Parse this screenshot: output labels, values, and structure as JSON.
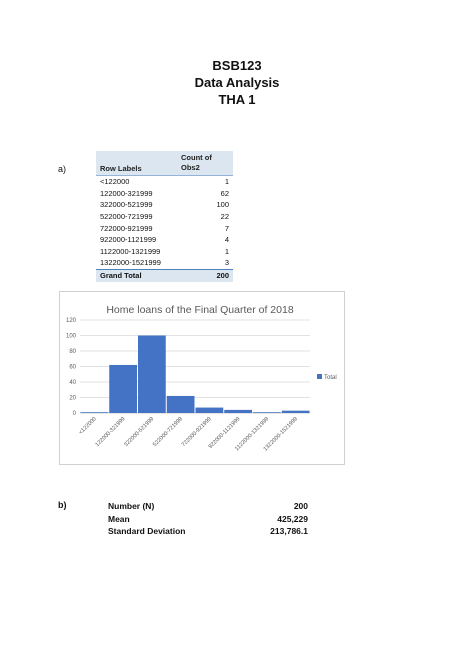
{
  "document": {
    "title_lines": [
      "BSB123",
      "Data Analysis",
      "THA 1"
    ],
    "part_a_label": "a)",
    "part_b_label": "b)"
  },
  "pivot_table": {
    "header_row_labels": "Row Labels",
    "header_count_line1": "Count of",
    "header_count_line2": "Obs2",
    "rows": [
      {
        "label": "<122000",
        "count": "1"
      },
      {
        "label": "122000-321999",
        "count": "62"
      },
      {
        "label": "322000-521999",
        "count": "100"
      },
      {
        "label": "522000-721999",
        "count": "22"
      },
      {
        "label": "722000-921999",
        "count": "7"
      },
      {
        "label": "922000-1121999",
        "count": "4"
      },
      {
        "label": "1122000-1321999",
        "count": "1"
      },
      {
        "label": "1322000-1521999",
        "count": "3"
      }
    ],
    "total_label": "Grand Total",
    "total_count": "200",
    "header_color": "#dce6f1"
  },
  "chart_data": {
    "type": "bar",
    "title": "Home loans of the Final Quarter of 2018",
    "categories": [
      "<122000",
      "122000-321999",
      "322000-521999",
      "522000-721999",
      "722000-921999",
      "922000-1121999",
      "1122000-1321999",
      "1322000-1521999"
    ],
    "series": [
      {
        "name": "Total",
        "values": [
          1,
          62,
          100,
          22,
          7,
          4,
          1,
          3
        ]
      }
    ],
    "ylim": [
      0,
      120
    ],
    "yticks": [
      0,
      20,
      40,
      60,
      80,
      100,
      120
    ],
    "grid": true,
    "legend": "right",
    "bar_color": "#4472c4"
  },
  "stats": [
    {
      "label": "Number (N)",
      "value": "200"
    },
    {
      "label": "Mean",
      "value": "425,229"
    },
    {
      "label": "Standard Deviation",
      "value": "213,786.1"
    }
  ]
}
